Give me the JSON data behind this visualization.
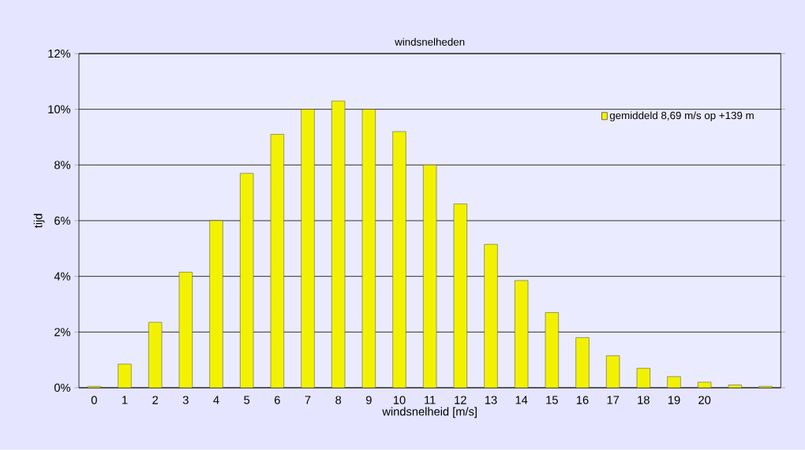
{
  "chart_data": {
    "type": "bar",
    "title": "windsnelheden",
    "xlabel": "windsnelheid [m/s]",
    "ylabel": "tijd",
    "categories": [
      "0",
      "1",
      "2",
      "3",
      "4",
      "5",
      "6",
      "7",
      "8",
      "9",
      "10",
      "11",
      "12",
      "13",
      "14",
      "15",
      "16",
      "17",
      "18",
      "19",
      "20",
      null,
      null
    ],
    "series": [
      {
        "name": "gemiddeld 8,69 m/s op +139 m",
        "color": "#f2f200",
        "values": [
          0.05,
          0.85,
          2.35,
          4.15,
          6.0,
          7.7,
          9.1,
          10.0,
          10.3,
          10.0,
          9.2,
          8.0,
          6.6,
          5.15,
          3.85,
          2.7,
          1.8,
          1.15,
          0.7,
          0.4,
          0.2,
          0.1,
          0.05
        ]
      }
    ],
    "ylim": [
      0,
      12
    ],
    "yticks": [
      {
        "value": 0,
        "label": "0%"
      },
      {
        "value": 2,
        "label": "2%"
      },
      {
        "value": 4,
        "label": "4%"
      },
      {
        "value": 6,
        "label": "6%"
      },
      {
        "value": 8,
        "label": "8%"
      },
      {
        "value": 10,
        "label": "10%"
      },
      {
        "value": 12,
        "label": "12%"
      }
    ],
    "grid": "y",
    "legend": "top right"
  }
}
